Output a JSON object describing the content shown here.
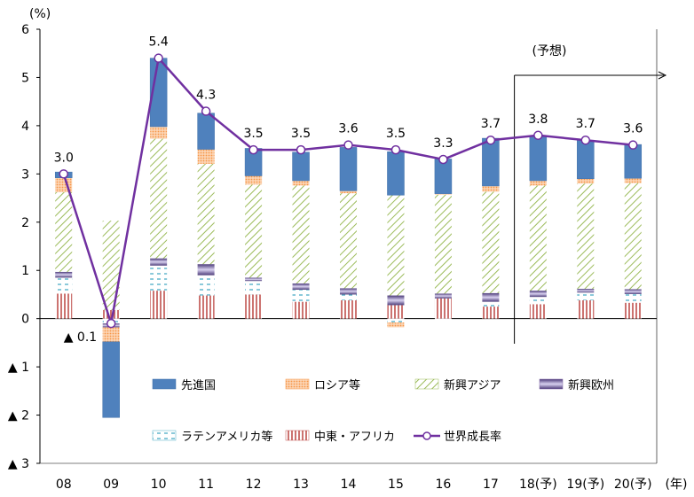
{
  "chart_data": {
    "type": "bar",
    "stacked": true,
    "y_unit": "(%)",
    "x_unit": "(年)",
    "forecast_label": "(予想)",
    "categories": [
      "08",
      "09",
      "10",
      "11",
      "12",
      "13",
      "14",
      "15",
      "16",
      "17",
      "18(予)",
      "19(予)",
      "20(予)"
    ],
    "ylim": [
      -3,
      6
    ],
    "y_ticks": [
      {
        "v": 6,
        "t": "6"
      },
      {
        "v": 5,
        "t": "5"
      },
      {
        "v": 4,
        "t": "4"
      },
      {
        "v": 3,
        "t": "3"
      },
      {
        "v": 2,
        "t": "2"
      },
      {
        "v": 1,
        "t": "1"
      },
      {
        "v": 0,
        "t": "0"
      },
      {
        "v": -1,
        "t": "▲ 1"
      },
      {
        "v": -2,
        "t": "▲ 2"
      },
      {
        "v": -3,
        "t": "▲ 3"
      }
    ],
    "series": [
      {
        "name": "中東・アフリカ",
        "color": "#c0504d",
        "pattern": "vlines",
        "values": [
          0.52,
          0.18,
          0.58,
          0.48,
          0.5,
          0.35,
          0.38,
          0.28,
          0.42,
          0.25,
          0.3,
          0.38,
          0.33
        ]
      },
      {
        "name": "ラテンアメリカ等",
        "color": "#4bacc6",
        "pattern": "dashes",
        "values": [
          0.33,
          -0.1,
          0.52,
          0.42,
          0.28,
          0.25,
          0.12,
          -0.08,
          -0.03,
          0.1,
          0.15,
          0.16,
          0.18
        ]
      },
      {
        "name": "新興欧州",
        "color": "#8064a2",
        "pattern": "gradient",
        "values": [
          0.12,
          -0.08,
          0.15,
          0.23,
          0.07,
          0.13,
          0.13,
          0.2,
          0.1,
          0.18,
          0.13,
          0.08,
          0.1
        ]
      },
      {
        "name": "新興アジア",
        "color": "#9bbb59",
        "pattern": "diag",
        "values": [
          1.65,
          1.85,
          2.48,
          2.08,
          1.93,
          2.03,
          1.97,
          2.08,
          2.05,
          2.1,
          2.18,
          2.18,
          2.2
        ]
      },
      {
        "name": "ロシア等",
        "color": "#f79646",
        "pattern": "dots",
        "values": [
          0.3,
          -0.3,
          0.25,
          0.3,
          0.18,
          0.1,
          0.05,
          -0.1,
          0.02,
          0.12,
          0.1,
          0.1,
          0.1
        ]
      },
      {
        "name": "先進国",
        "color": "#4f81bd",
        "pattern": "solid",
        "values": [
          0.12,
          -1.57,
          1.42,
          0.75,
          0.57,
          0.59,
          0.9,
          0.9,
          0.72,
          0.99,
          0.94,
          0.8,
          0.7
        ]
      }
    ],
    "line": {
      "name": "世界成長率",
      "color": "#7030a0",
      "values": [
        3.0,
        -0.1,
        5.4,
        4.3,
        3.5,
        3.5,
        3.6,
        3.5,
        3.3,
        3.7,
        3.8,
        3.7,
        3.6
      ],
      "labels": [
        "3.0",
        "▲ 0.1",
        "5.4",
        "4.3",
        "3.5",
        "3.5",
        "3.6",
        "3.5",
        "3.3",
        "3.7",
        "3.8",
        "3.7",
        "3.6"
      ]
    },
    "legend_order": [
      "先進国",
      "ロシア等",
      "新興アジア",
      "新興欧州",
      "ラテンアメリカ等",
      "中東・アフリカ",
      "世界成長率"
    ],
    "grid": false
  }
}
